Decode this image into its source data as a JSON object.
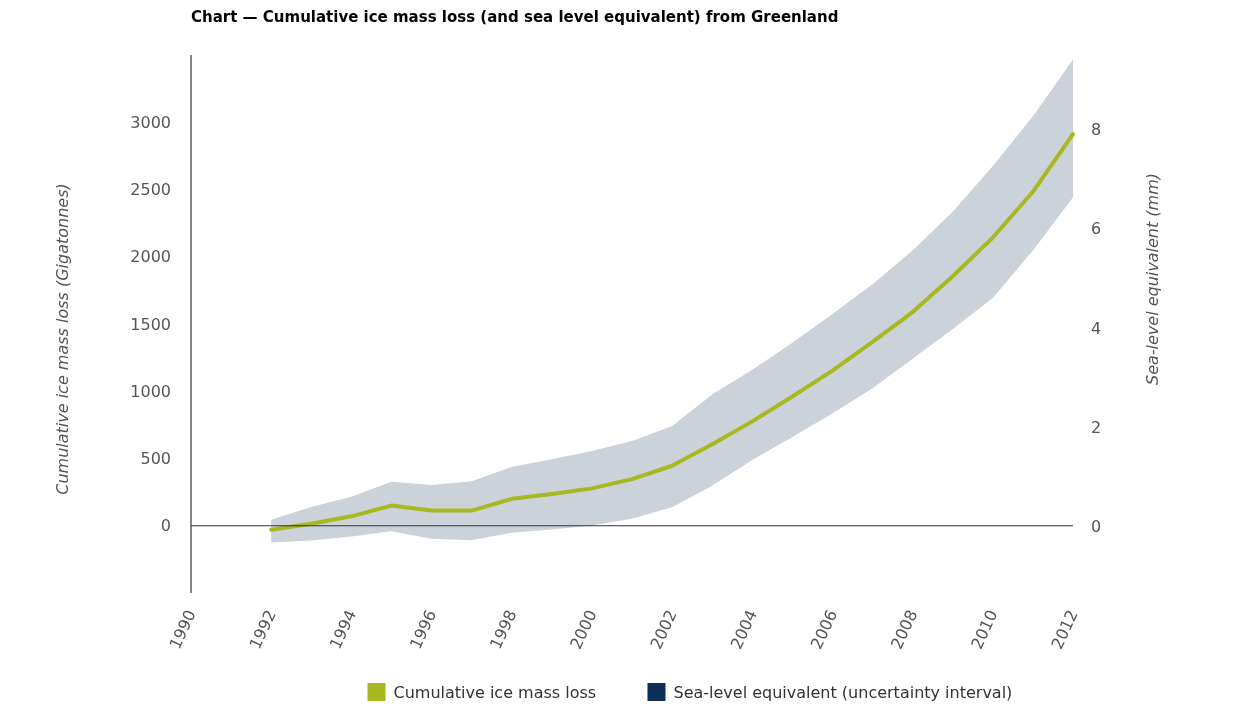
{
  "chart_data": {
    "type": "line",
    "title": "Chart — Cumulative ice mass loss (and sea level equivalent) from Greenland",
    "ylabel": "Cumulative ice mass loss (Gigatonnes)",
    "y2label": "Sea-level equivalent (mm)",
    "x": [
      1992,
      1993,
      1994,
      1995,
      1996,
      1997,
      1998,
      1999,
      2000,
      2001,
      2002,
      2003,
      2004,
      2005,
      2006,
      2007,
      2008,
      2009,
      2010,
      2011,
      2012
    ],
    "xlim": [
      1990,
      2012
    ],
    "xticks": [
      1990,
      1992,
      1994,
      1996,
      1998,
      2000,
      2002,
      2004,
      2006,
      2008,
      2010,
      2012
    ],
    "ylim": [
      -500,
      3500
    ],
    "yticks": [
      0,
      500,
      1000,
      1500,
      2000,
      2500,
      3000
    ],
    "y2lim": [
      -1.33,
      9.49
    ],
    "y2ticks": [
      0,
      2,
      4,
      6,
      8
    ],
    "series": [
      {
        "name": "Cumulative ice mass loss",
        "type": "line",
        "color": "#a8b820",
        "values": [
          -30,
          15,
          70,
          150,
          113,
          113,
          200,
          236,
          278,
          347,
          446,
          606,
          776,
          961,
          1153,
          1367,
          1589,
          1855,
          2143,
          2483,
          2912
        ],
        "lower": [
          -125,
          -110,
          -80,
          -40,
          -96,
          -108,
          -52,
          -27,
          2,
          52,
          138,
          298,
          488,
          660,
          835,
          1022,
          1242,
          1463,
          1693,
          2047,
          2441
        ],
        "upper": [
          45,
          140,
          215,
          327,
          303,
          330,
          438,
          495,
          556,
          630,
          741,
          975,
          1160,
          1360,
          1574,
          1796,
          2047,
          2335,
          2675,
          3045,
          3466
        ]
      }
    ],
    "annotations": [
      "Sea-level equivalent (uncertainty interval)"
    ],
    "ref_lines": [
      {
        "axis": "y",
        "value": 0,
        "color": "#333333"
      }
    ],
    "grid": false,
    "legend": "bottom"
  }
}
